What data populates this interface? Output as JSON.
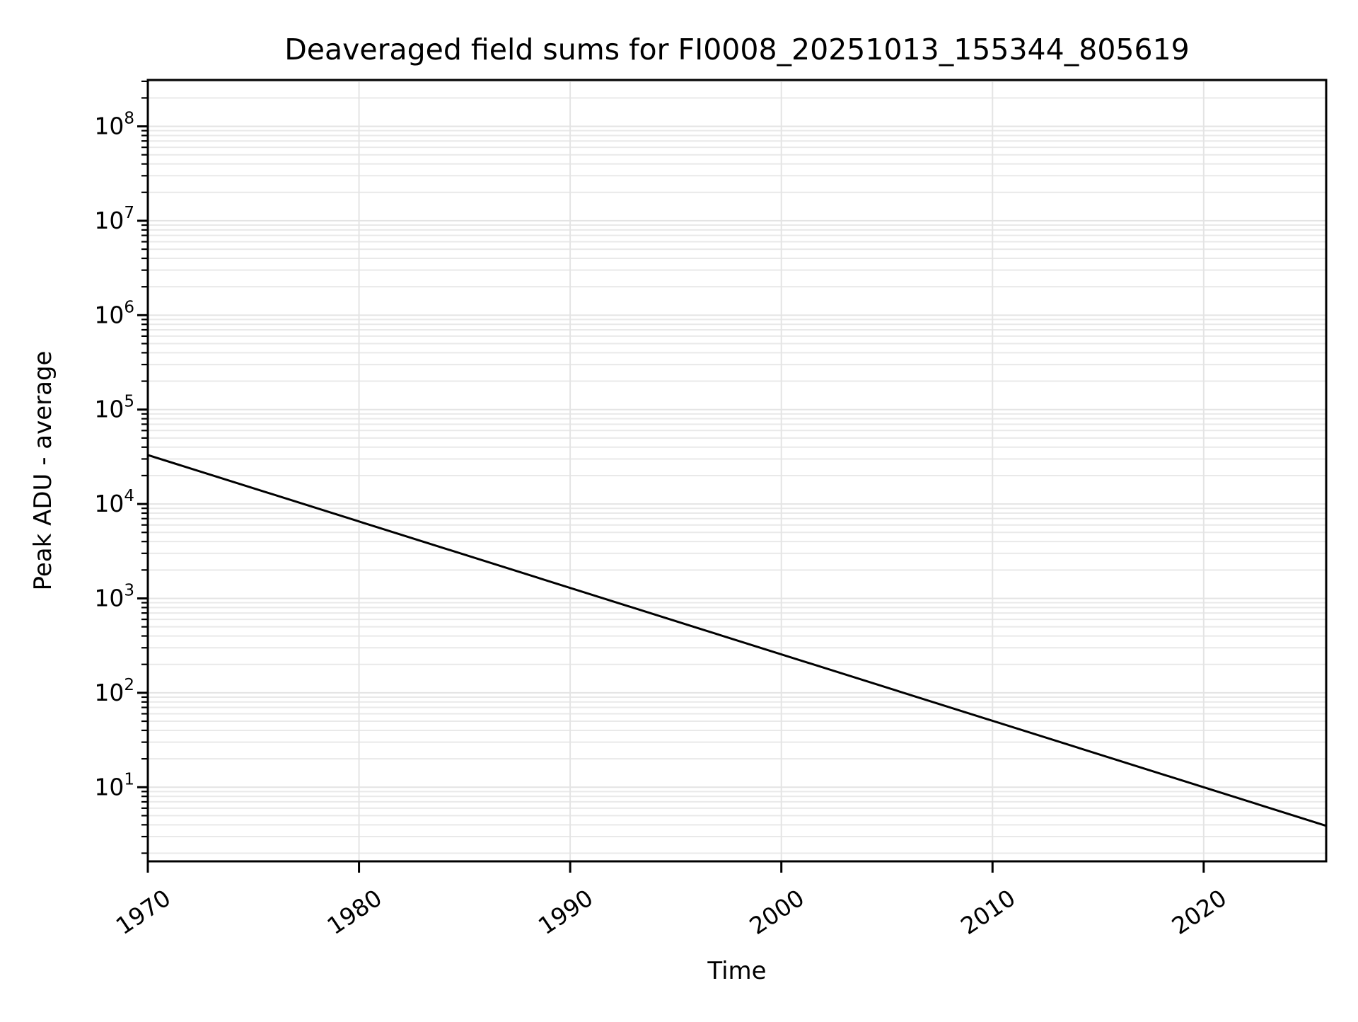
{
  "chart_data": {
    "type": "line",
    "title": "Deaveraged field sums for FI0008_20251013_155344_805619",
    "xlabel": "Time",
    "ylabel": "Peak ADU - average",
    "x_scale": "linear",
    "y_scale": "log",
    "xlim": [
      1970,
      2025.8
    ],
    "ylim": [
      1.64,
      310000000
    ],
    "x_ticks": [
      {
        "label": "1970",
        "value": 1970
      },
      {
        "label": "1980",
        "value": 1980
      },
      {
        "label": "1990",
        "value": 1990
      },
      {
        "label": "2000",
        "value": 2000
      },
      {
        "label": "2010",
        "value": 2010
      },
      {
        "label": "2020",
        "value": 2020
      }
    ],
    "x_tick_label_rotation_deg": -34,
    "y_ticks": [
      {
        "base": "10",
        "exponent": "1",
        "value": 10
      },
      {
        "base": "10",
        "exponent": "2",
        "value": 100
      },
      {
        "base": "10",
        "exponent": "3",
        "value": 1000
      },
      {
        "base": "10",
        "exponent": "4",
        "value": 10000
      },
      {
        "base": "10",
        "exponent": "5",
        "value": 100000
      },
      {
        "base": "10",
        "exponent": "6",
        "value": 1000000
      },
      {
        "base": "10",
        "exponent": "7",
        "value": 10000000
      },
      {
        "base": "10",
        "exponent": "8",
        "value": 100000000
      }
    ],
    "y_minor_subs": [
      2,
      3,
      4,
      5,
      6,
      7,
      8,
      9
    ],
    "grid": {
      "major_color": "#e4e4e4",
      "minor_color": "#e9e9e9",
      "vertical_at_x_ticks": true,
      "horizontal_major_and_log_minor": true
    },
    "colors": {
      "spine": "#000000",
      "tick": "#000000",
      "text": "#000000",
      "background": "#ffffff"
    },
    "series": [
      {
        "name": "series-1",
        "color": "#000000",
        "x": [
          1970.0,
          2025.8
        ],
        "y": [
          33000,
          3.9
        ]
      }
    ],
    "legend": null
  }
}
